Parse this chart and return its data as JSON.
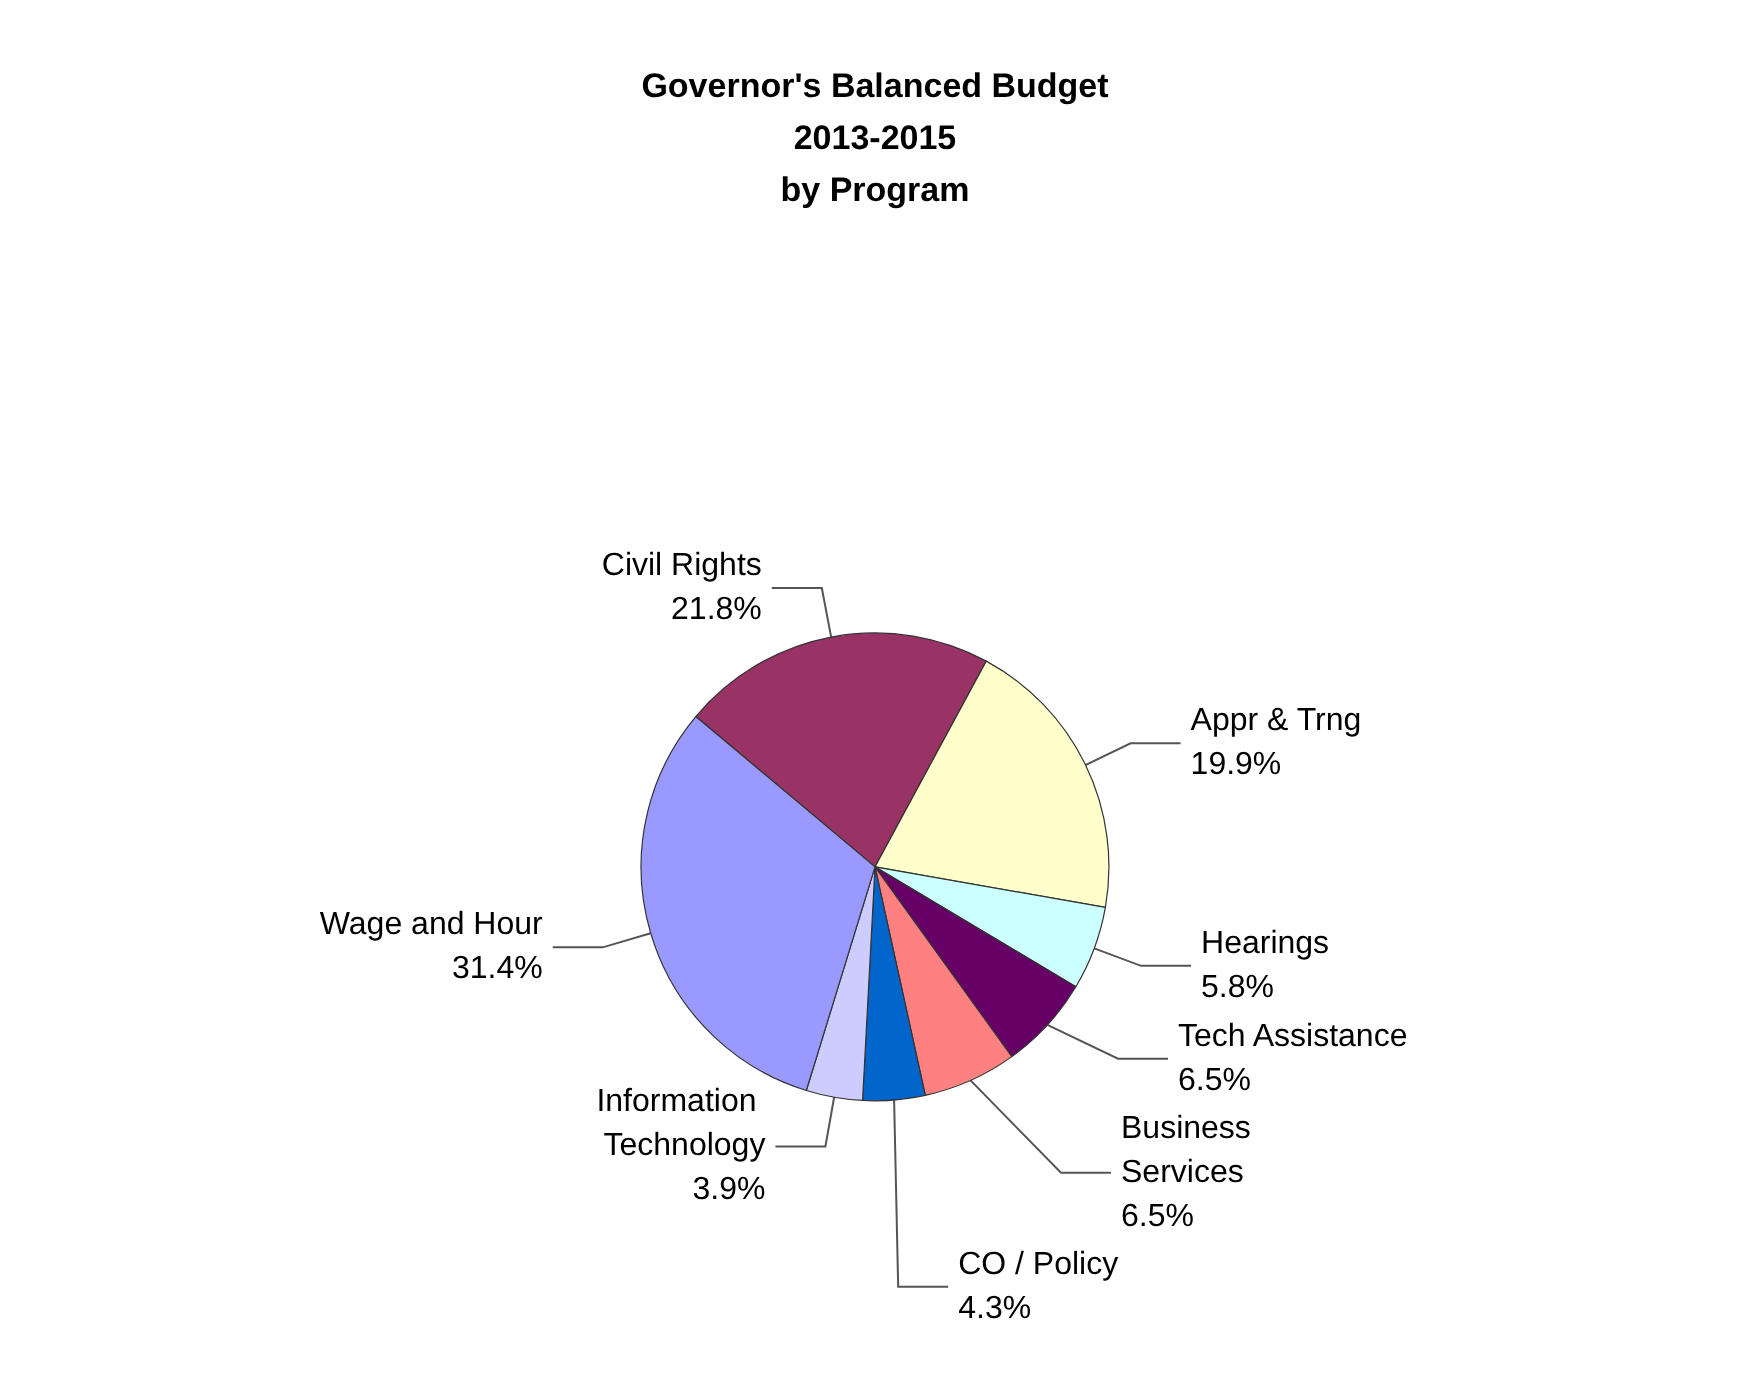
{
  "chart_data": {
    "type": "pie",
    "title": "Governor's Balanced Budget\n2013-2015\nby Program",
    "categories": [
      "Civil Rights",
      "Appr & Trng",
      "Hearings",
      "Tech Assistance",
      "Business Services",
      "CO / Policy",
      "Information Technology",
      "Wage and Hour"
    ],
    "values": [
      21.8,
      19.9,
      5.8,
      6.5,
      6.5,
      4.3,
      3.9,
      31.4
    ],
    "colors": [
      "#993366",
      "#ffffcc",
      "#ccffff",
      "#660066",
      "#ff8080",
      "#0066cc",
      "#ccccff",
      "#9999ff"
    ],
    "value_labels": [
      "21.8%",
      "19.9%",
      "5.8%",
      "6.5%",
      "6.5%",
      "4.3%",
      "3.9%",
      "31.4%"
    ],
    "legend": false
  }
}
